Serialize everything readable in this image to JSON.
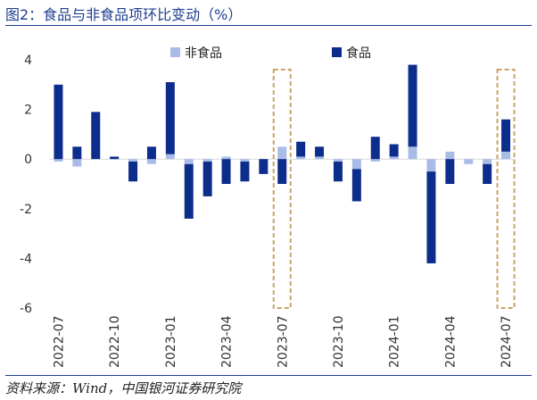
{
  "title": "图2：食品与非食品项环比变动（%）",
  "source": "资料来源：Wind，中国银河证券研究院",
  "colors": {
    "food": "#0d2d8c",
    "nonfood": "#a9bce8",
    "highlight": "#c9a46a",
    "axis": "#d9d9d9"
  },
  "chart_data": {
    "type": "bar",
    "stacked": true,
    "title": "图2：食品与非食品项环比变动（%）",
    "ylim": [
      -6,
      4
    ],
    "yticks": [
      -6,
      -4,
      -2,
      0,
      2,
      4
    ],
    "categories": [
      "2022-07",
      "2022-08",
      "2022-09",
      "2022-10",
      "2022-11",
      "2022-12",
      "2023-01",
      "2023-02",
      "2023-03",
      "2023-04",
      "2023-05",
      "2023-06",
      "2023-07",
      "2023-08",
      "2023-09",
      "2023-10",
      "2023-11",
      "2023-12",
      "2024-01",
      "2024-02",
      "2024-03",
      "2024-04",
      "2024-05",
      "2024-06",
      "2024-07"
    ],
    "xtick_labels": [
      "2022-07",
      "2022-10",
      "2023-01",
      "2023-04",
      "2023-07",
      "2023-10",
      "2024-01",
      "2024-04",
      "2024-07"
    ],
    "xtick_indices": [
      0,
      3,
      6,
      9,
      12,
      15,
      18,
      21,
      24
    ],
    "legend": [
      "非食品",
      "食品"
    ],
    "legend_position": "top",
    "series": [
      {
        "name": "非食品",
        "values": [
          -0.1,
          -0.3,
          0.0,
          0.0,
          -0.1,
          -0.2,
          0.2,
          -0.2,
          -0.1,
          0.1,
          -0.1,
          0.0,
          0.5,
          0.1,
          0.1,
          -0.1,
          -0.4,
          -0.1,
          0.1,
          0.5,
          -0.5,
          0.3,
          -0.2,
          -0.2,
          0.3
        ]
      },
      {
        "name": "食品",
        "values": [
          3.0,
          0.5,
          1.9,
          0.1,
          -0.8,
          0.5,
          2.9,
          -2.2,
          -1.4,
          -1.0,
          -0.8,
          -0.6,
          -1.0,
          0.6,
          0.4,
          -0.8,
          -1.3,
          0.9,
          0.5,
          3.3,
          -3.7,
          -1.0,
          0.0,
          -0.8,
          1.3
        ]
      }
    ],
    "highlight_indices": [
      12,
      24
    ],
    "grid": false
  }
}
